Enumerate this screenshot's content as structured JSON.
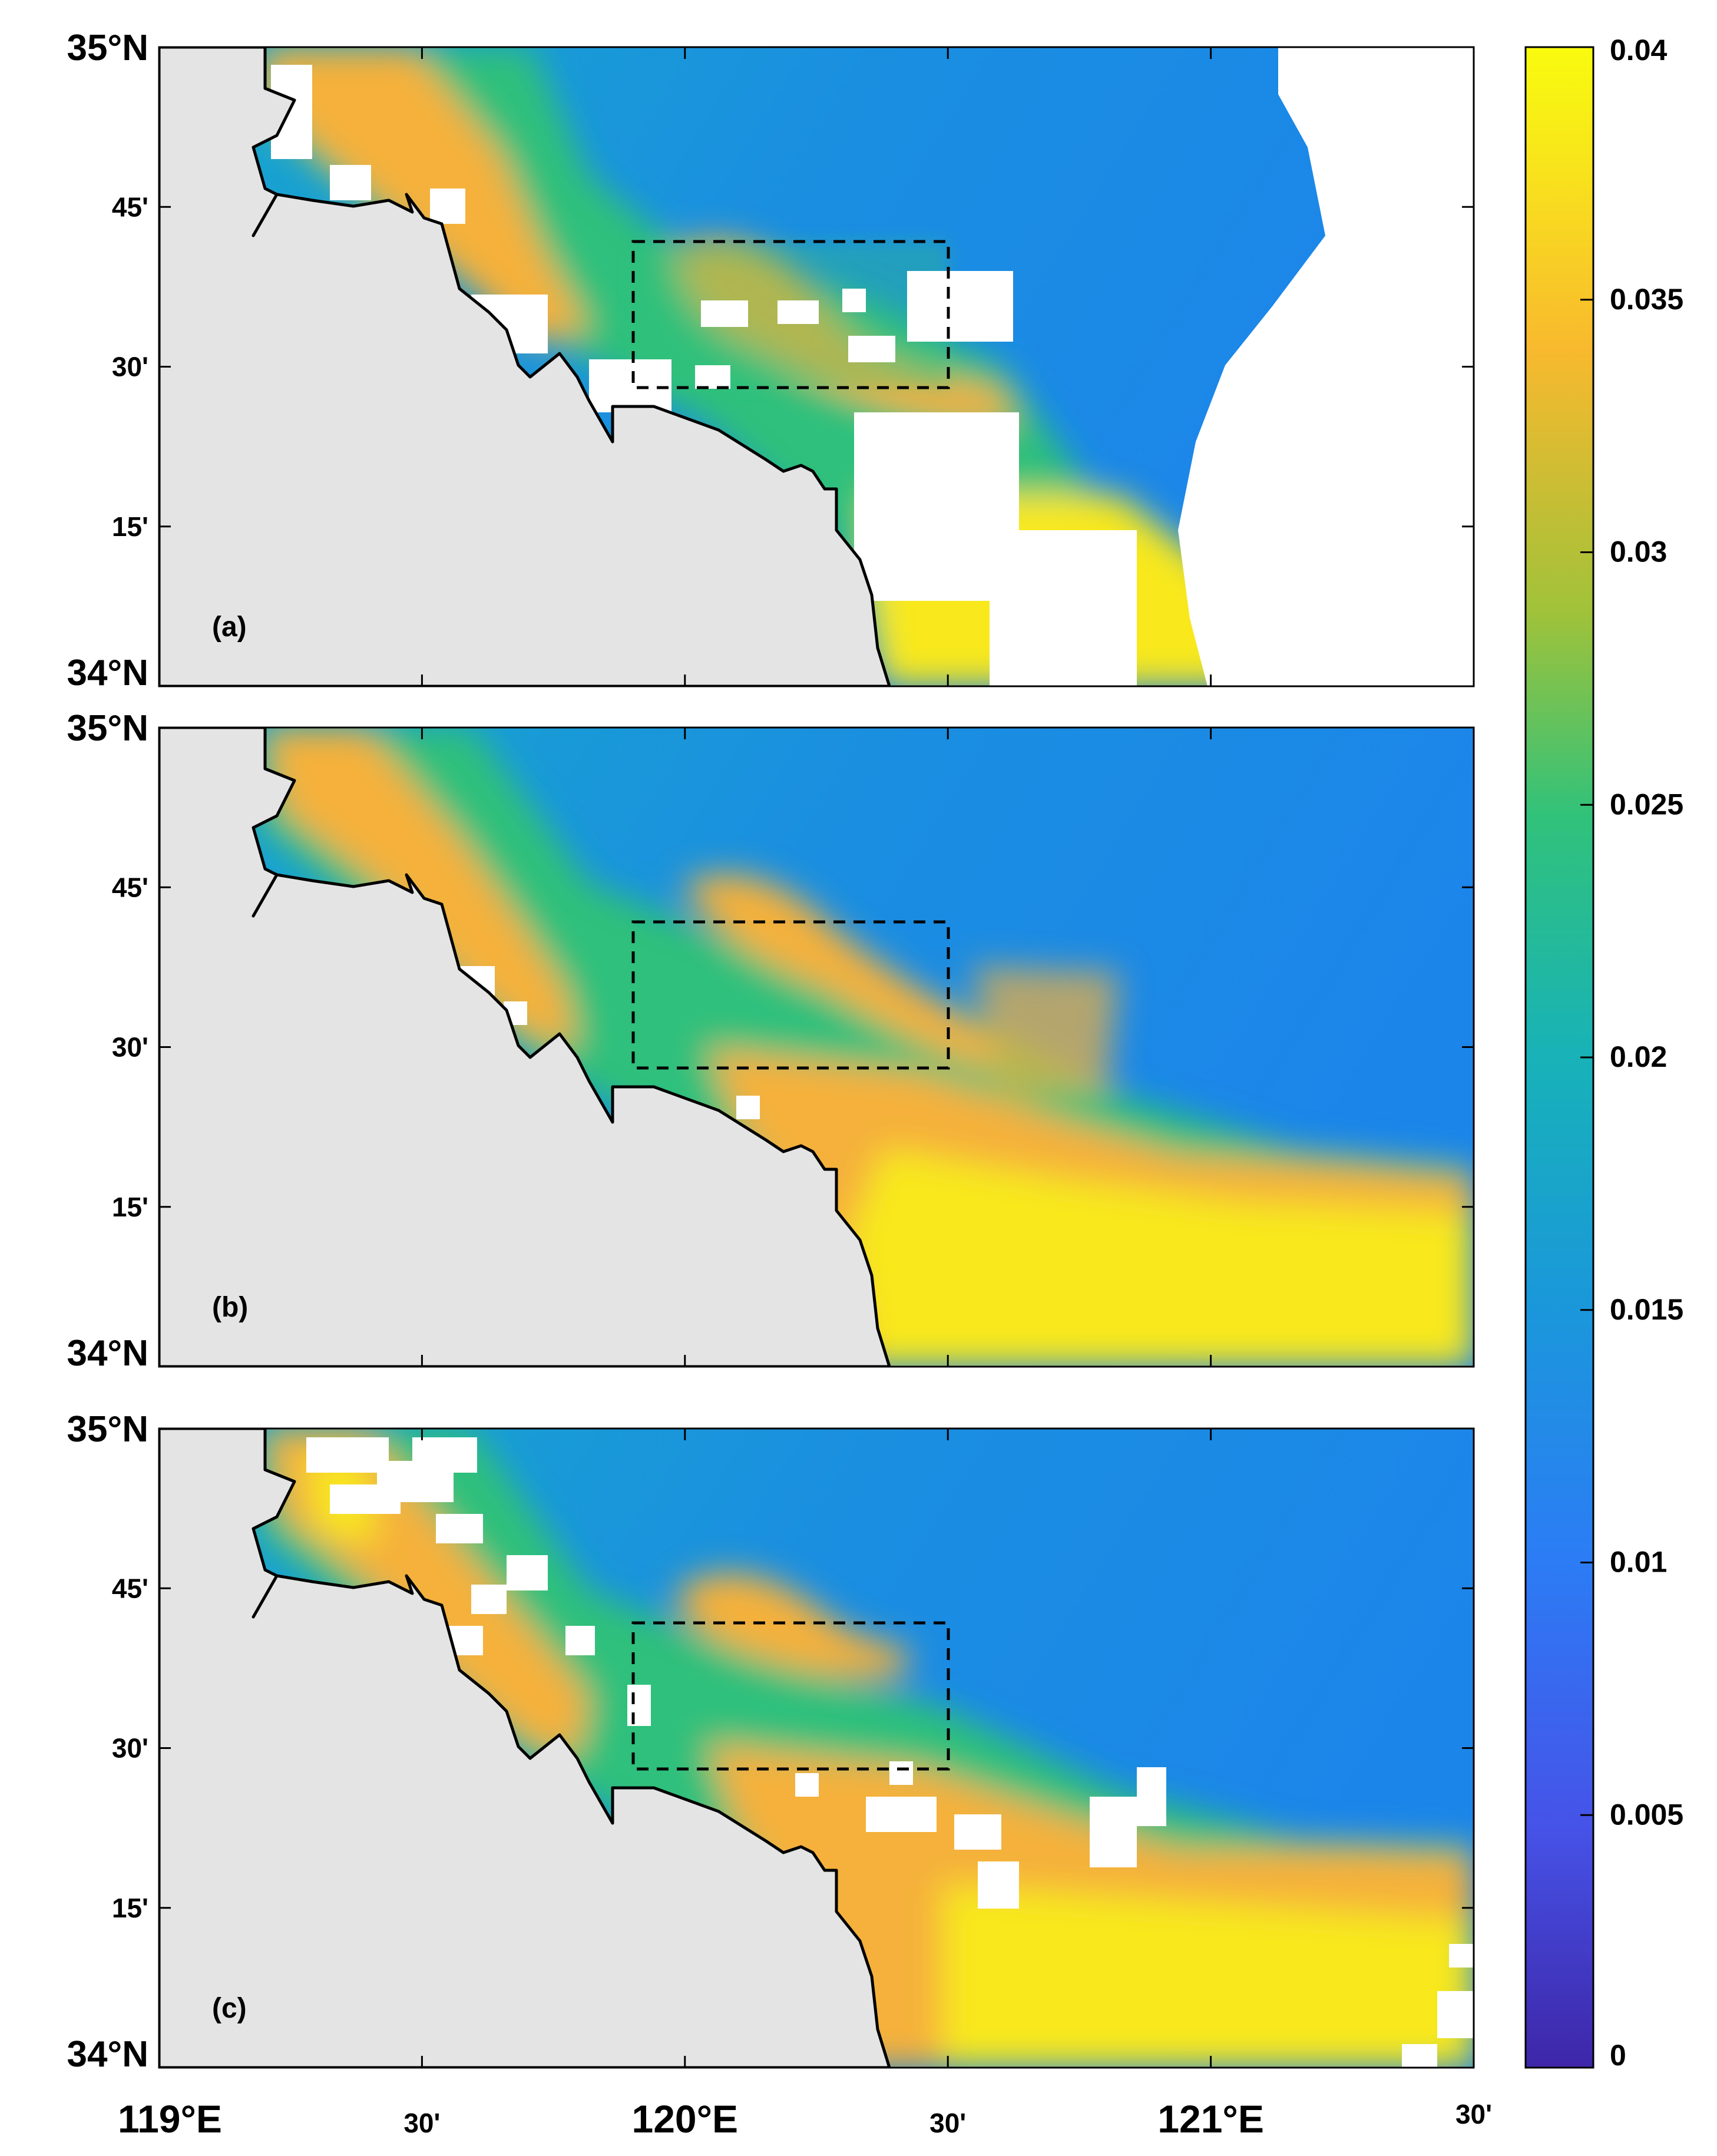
{
  "figure": {
    "panels": [
      {
        "id": "a",
        "label": "(a)"
      },
      {
        "id": "b",
        "label": "(b)"
      },
      {
        "id": "c",
        "label": "(c)"
      }
    ],
    "y_ticks": [
      {
        "lat": 35.0,
        "label": "35°N"
      },
      {
        "lat": 34.75,
        "label": "45'"
      },
      {
        "lat": 34.5,
        "label": "30'"
      },
      {
        "lat": 34.25,
        "label": "15'"
      },
      {
        "lat": 34.0,
        "label": "34°N"
      }
    ],
    "x_ticks": [
      {
        "lon": 119.0,
        "label": "119°E",
        "major": true
      },
      {
        "lon": 119.5,
        "label": "30'",
        "major": false
      },
      {
        "lon": 120.0,
        "label": "120°E",
        "major": true
      },
      {
        "lon": 120.5,
        "label": "30'",
        "major": false
      },
      {
        "lon": 121.0,
        "label": "121°E",
        "major": true
      },
      {
        "lon": 121.5,
        "label": "30'",
        "major": false
      }
    ],
    "extent": {
      "lon_min": 119.0,
      "lon_max": 121.5,
      "lat_min": 34.0,
      "lat_max": 35.0
    },
    "study_box": {
      "lon_min": 119.9,
      "lon_max": 120.5,
      "lat_min": 34.47,
      "lat_max": 34.7
    },
    "colorbar": {
      "min": 0,
      "max": 0.04,
      "ticks": [
        "0",
        "0.005",
        "0.01",
        "0.015",
        "0.02",
        "0.025",
        "0.03",
        "0.035",
        "0.04"
      ],
      "colors": [
        "#3e26a8",
        "#4653e8",
        "#2c7cf5",
        "#1a98da",
        "#18b2b8",
        "#31c27a",
        "#a0c23a",
        "#f8b92e",
        "#f8e81a",
        "#f9fb0e"
      ]
    },
    "colors": {
      "land": "#e4e4e4",
      "coastline": "#000000",
      "missing": "#ffffff",
      "box": "#000000"
    }
  }
}
